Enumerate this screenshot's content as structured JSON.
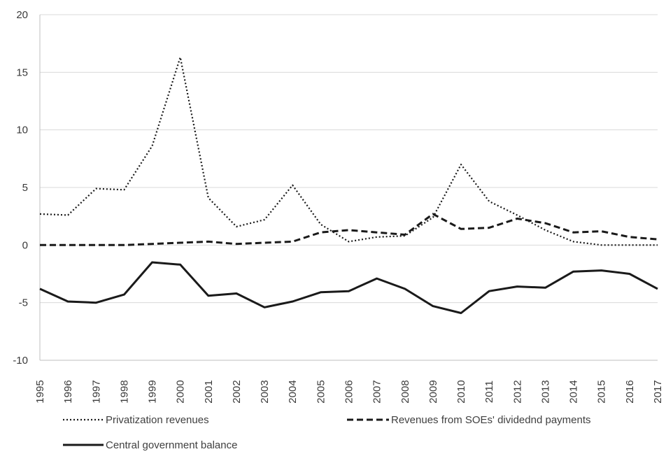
{
  "chart_data": {
    "type": "line",
    "title": "",
    "xlabel": "",
    "ylabel": "",
    "ylim": [
      -10,
      20
    ],
    "yticks": [
      "20",
      "15",
      "10",
      "5",
      "0",
      "-5",
      "-10"
    ],
    "categories": [
      "1995",
      "1996",
      "1997",
      "1998",
      "1999",
      "2000",
      "2001",
      "2002",
      "2003",
      "2004",
      "2005",
      "2006",
      "2007",
      "2008",
      "2009",
      "2010",
      "2011",
      "2012",
      "2013",
      "2014",
      "2015",
      "2016",
      "2017"
    ],
    "grid": true,
    "legend_placement": "bottom",
    "series": [
      {
        "name": "Privatization revenues",
        "style": "dotted",
        "color": "#1a1a1a",
        "values": [
          2.7,
          2.6,
          4.9,
          4.8,
          8.6,
          16.3,
          4.1,
          1.6,
          2.2,
          5.2,
          1.8,
          0.3,
          0.7,
          0.8,
          2.4,
          7.0,
          3.8,
          2.6,
          1.3,
          0.3,
          0.0,
          0.0,
          0.0
        ]
      },
      {
        "name": "Revenues from SOEs' dividednd payments",
        "style": "dashed",
        "color": "#1a1a1a",
        "values": [
          0.0,
          0.0,
          0.0,
          0.0,
          0.1,
          0.2,
          0.3,
          0.1,
          0.2,
          0.3,
          1.1,
          1.3,
          1.1,
          0.9,
          2.7,
          1.4,
          1.5,
          2.3,
          1.9,
          1.1,
          1.2,
          0.7,
          0.5
        ]
      },
      {
        "name": "Central government balance",
        "style": "solid",
        "color": "#1a1a1a",
        "values": [
          -3.8,
          -4.9,
          -5.0,
          -4.3,
          -1.5,
          -1.7,
          -4.4,
          -4.2,
          -5.4,
          -4.9,
          -4.1,
          -4.0,
          -2.9,
          -3.8,
          -5.3,
          -5.9,
          -4.0,
          -3.6,
          -3.7,
          -2.3,
          -2.2,
          -2.5,
          -3.8
        ]
      }
    ]
  }
}
